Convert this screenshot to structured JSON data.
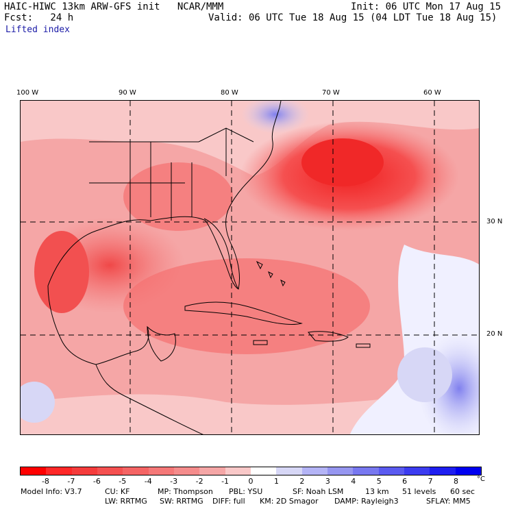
{
  "header": {
    "model_title": "HAIC-HIWC 13km ARW-GFS init   NCAR/MMM",
    "init": "Init: 06 UTC Mon 17 Aug 15",
    "forecast_label": "Fcst:   24 h",
    "valid": "Valid: 06 UTC Tue 18 Aug 15 (04 LDT Tue 18 Aug 15)",
    "field": "Lifted index"
  },
  "map": {
    "lon_labels": [
      "100 W",
      "90 W",
      "80 W",
      "70 W",
      "60 W"
    ],
    "lat_labels": [
      "30 N",
      "20 N"
    ]
  },
  "colorbar": {
    "ticks": [
      "-8",
      "-7",
      "-6",
      "-5",
      "-4",
      "-3",
      "-2",
      "-1",
      "0",
      "1",
      "2",
      "3",
      "4",
      "5",
      "6",
      "7",
      "8"
    ],
    "unit": "°C",
    "colors": [
      "#ff0000",
      "#ff2828",
      "#f53c3c",
      "#f55050",
      "#f56464",
      "#f57878",
      "#f58c8c",
      "#f5a6a6",
      "#f9c8c8",
      "#ffffff",
      "#d7d7f6",
      "#b4b4f6",
      "#9696f0",
      "#7878f0",
      "#5a5af0",
      "#3c3cf0",
      "#1e1ef0",
      "#0000f0"
    ]
  },
  "model_info": {
    "line1": [
      "Model Info: V3.7",
      "CU: KF",
      "MP: Thompson",
      "PBL: YSU",
      "SF: Noah LSM",
      "13 km",
      "51 levels",
      "60 sec"
    ],
    "line2": [
      "LW: RRTMG",
      "SW: RRTMG",
      "DIFF: full",
      "KM: 2D Smagor",
      "DAMP: Rayleigh3",
      "SFLAY: MM5"
    ]
  }
}
